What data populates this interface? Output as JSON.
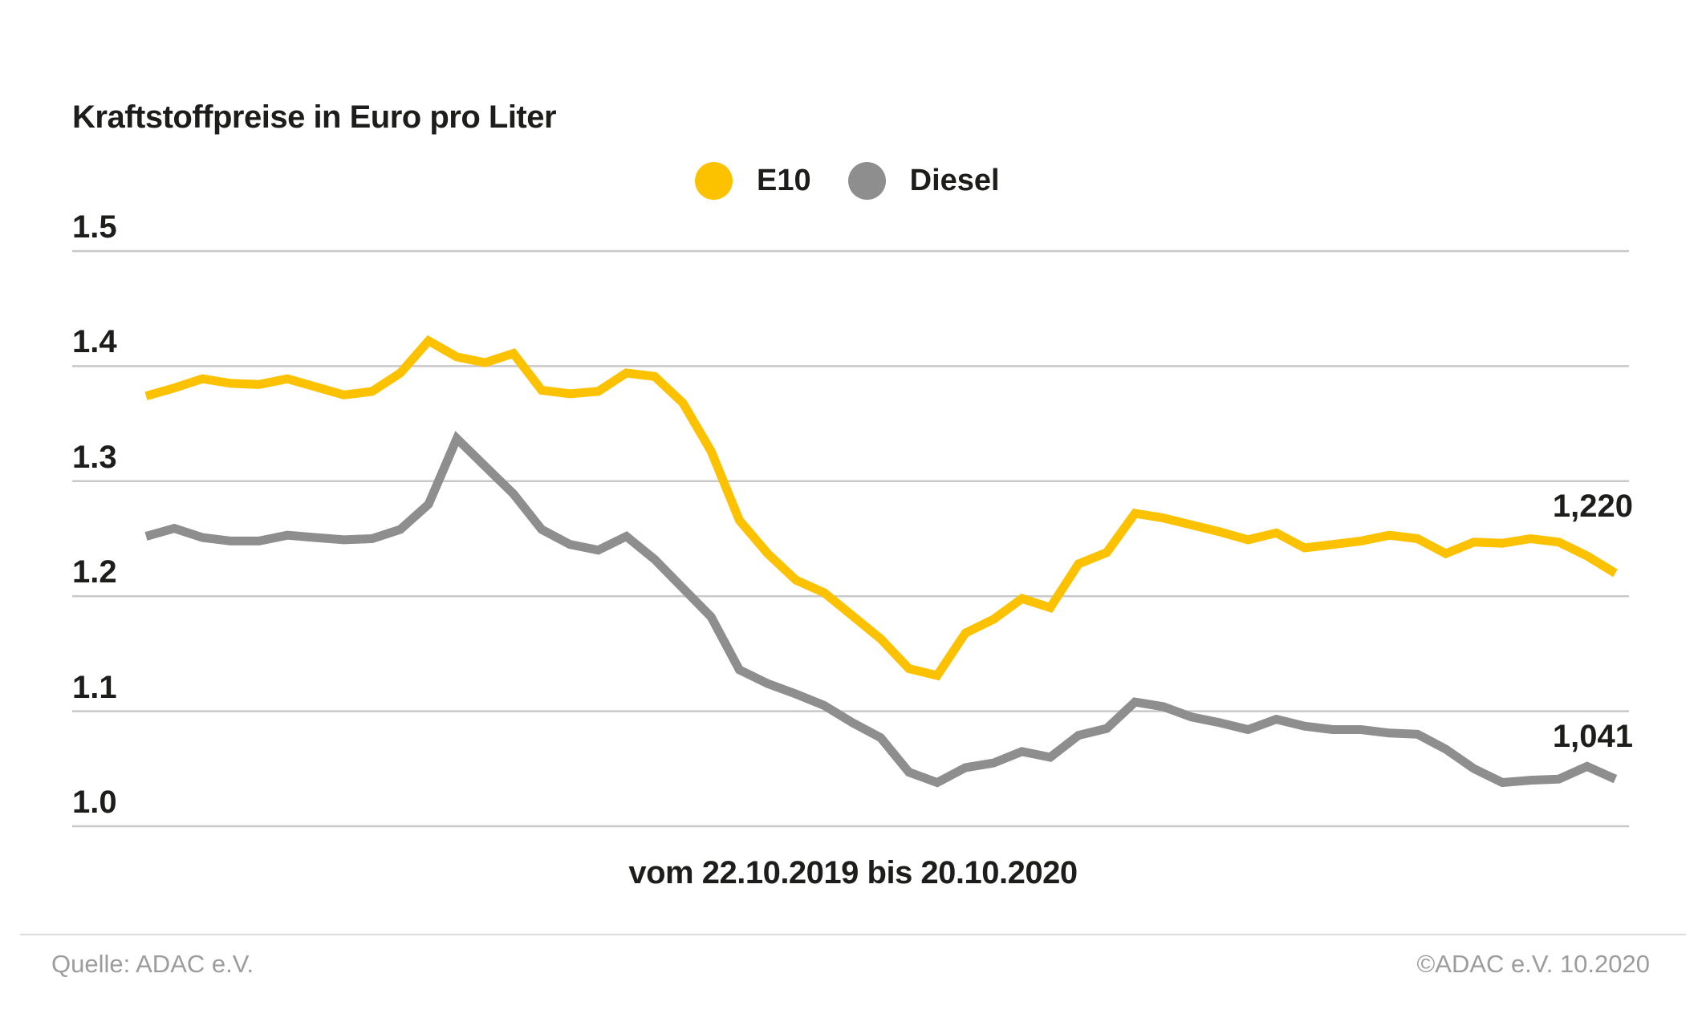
{
  "title": "Kraftstoffpreise in Euro pro Liter",
  "footer": {
    "source": "Quelle: ADAC e.V.",
    "copyright": "©ADAC e.V. 10.2020"
  },
  "colors": {
    "e10": "#FCC200",
    "diesel": "#8E8E8E",
    "grid": "#C8C8C8",
    "text": "#1D1D1B",
    "muted": "#9C9C9C",
    "divider": "#DBDBDB",
    "background": "#FFFFFF"
  },
  "chart_data": {
    "type": "line",
    "title": "Kraftstoffpreise in Euro pro Liter",
    "x_axis_label": "vom 22.10.2019 bis 20.10.2020",
    "x_range": [
      "22.10.2019",
      "20.10.2020"
    ],
    "x_interval": "weekly",
    "ylim": [
      1.0,
      1.5
    ],
    "grid": true,
    "legend_position": "top-center",
    "y_ticks": [
      {
        "label": "1.5",
        "value": 1.5
      },
      {
        "label": "1.4",
        "value": 1.4
      },
      {
        "label": "1.3",
        "value": 1.3
      },
      {
        "label": "1.2",
        "value": 1.2
      },
      {
        "label": "1.1",
        "value": 1.1
      },
      {
        "label": "1.0",
        "value": 1.0
      }
    ],
    "series": [
      {
        "name": "E10",
        "color": "#FCC200",
        "end_label": "1,220",
        "last_value": 1.22,
        "values": [
          1.374,
          1.381,
          1.389,
          1.385,
          1.384,
          1.389,
          1.382,
          1.375,
          1.378,
          1.394,
          1.422,
          1.408,
          1.403,
          1.411,
          1.379,
          1.376,
          1.378,
          1.394,
          1.391,
          1.368,
          1.326,
          1.266,
          1.237,
          1.214,
          1.203,
          1.183,
          1.163,
          1.137,
          1.131,
          1.168,
          1.18,
          1.198,
          1.19,
          1.228,
          1.238,
          1.272,
          1.268,
          1.262,
          1.256,
          1.249,
          1.255,
          1.242,
          1.245,
          1.248,
          1.253,
          1.25,
          1.237,
          1.247,
          1.246,
          1.25,
          1.247,
          1.235,
          1.22
        ]
      },
      {
        "name": "Diesel",
        "color": "#8E8E8E",
        "end_label": "1,041",
        "last_value": 1.041,
        "values": [
          1.252,
          1.259,
          1.251,
          1.248,
          1.248,
          1.253,
          1.251,
          1.249,
          1.25,
          1.258,
          1.28,
          1.337,
          1.313,
          1.289,
          1.258,
          1.245,
          1.24,
          1.252,
          1.232,
          1.207,
          1.182,
          1.136,
          1.124,
          1.115,
          1.105,
          1.09,
          1.077,
          1.047,
          1.038,
          1.051,
          1.055,
          1.065,
          1.06,
          1.079,
          1.085,
          1.108,
          1.104,
          1.095,
          1.09,
          1.084,
          1.093,
          1.087,
          1.084,
          1.084,
          1.081,
          1.08,
          1.067,
          1.05,
          1.038,
          1.04,
          1.041,
          1.052,
          1.041
        ]
      }
    ]
  }
}
